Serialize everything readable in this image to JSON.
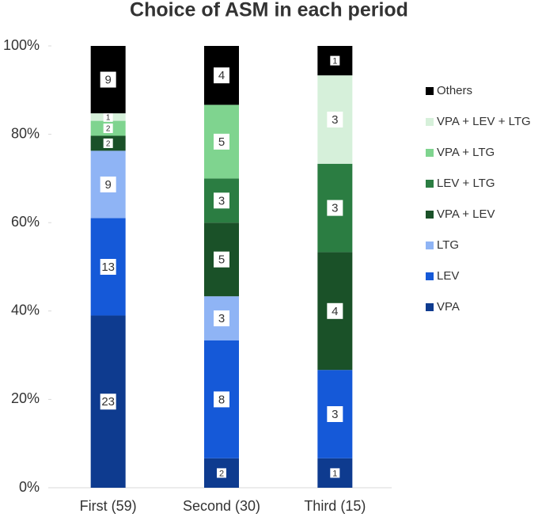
{
  "chart_data": {
    "type": "percent_stacked_bar",
    "title": "Choice of ASM in each period",
    "categories": [
      "First (59)",
      "Second (30)",
      "Third (15)"
    ],
    "series": [
      {
        "name": "VPA",
        "color": "#0e3b8f",
        "values": [
          23,
          2,
          1
        ]
      },
      {
        "name": "LEV",
        "color": "#1559d8",
        "values": [
          13,
          8,
          3
        ]
      },
      {
        "name": "LTG",
        "color": "#8fb4f5",
        "values": [
          9,
          3,
          0
        ]
      },
      {
        "name": "VPA + LEV",
        "color": "#1a5128",
        "values": [
          2,
          5,
          4
        ]
      },
      {
        "name": "LEV + LTG",
        "color": "#2b7d42",
        "values": [
          0,
          3,
          3
        ]
      },
      {
        "name": "VPA + LTG",
        "color": "#7fd48f",
        "values": [
          2,
          5,
          0
        ]
      },
      {
        "name": "VPA + LEV + LTG",
        "color": "#d6f0da",
        "values": [
          1,
          0,
          3
        ]
      },
      {
        "name": "Others",
        "color": "#000000",
        "values": [
          9,
          4,
          1
        ]
      }
    ],
    "ylim": [
      0,
      100
    ],
    "yticks": [
      {
        "value": 0,
        "label": "0%"
      },
      {
        "value": 20,
        "label": "20%"
      },
      {
        "value": 40,
        "label": "40%"
      },
      {
        "value": 60,
        "label": "60%"
      },
      {
        "value": 80,
        "label": "80%"
      },
      {
        "value": 100,
        "label": "100%"
      }
    ],
    "legend": "right"
  }
}
